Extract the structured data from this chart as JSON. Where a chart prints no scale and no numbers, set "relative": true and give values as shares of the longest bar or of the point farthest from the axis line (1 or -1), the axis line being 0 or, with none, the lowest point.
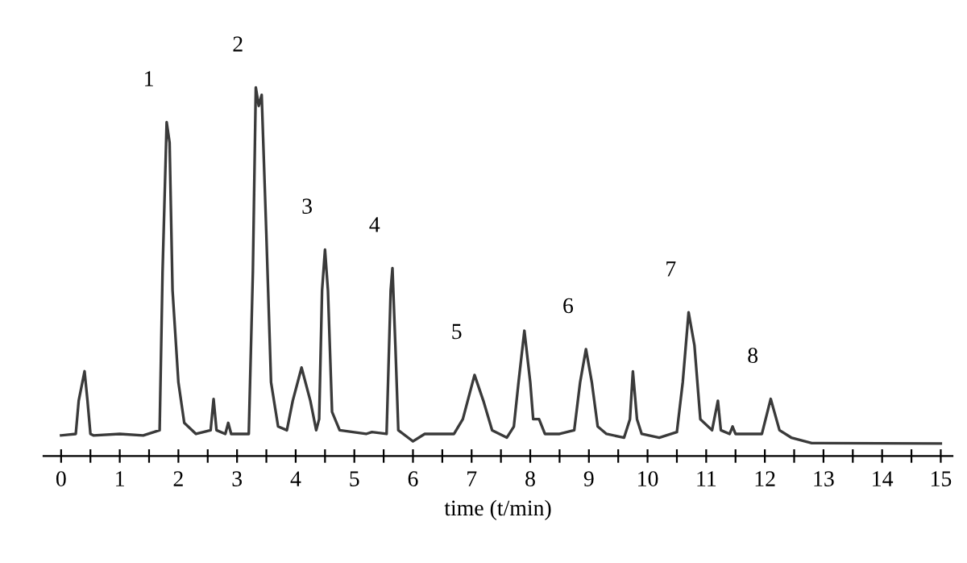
{
  "chart_data": {
    "type": "line",
    "relative": true,
    "xlabel": "time (t/min)",
    "tick_labels": "x",
    "grid": false,
    "legend": false,
    "marker": "none",
    "line_style": "solid",
    "xlim": [
      -0.3,
      15.2
    ],
    "xticks": [
      0,
      {
        "value": 0.5,
        "label": null
      },
      1,
      {
        "value": 1.5,
        "label": null
      },
      2,
      {
        "value": 2.5,
        "label": null
      },
      3,
      {
        "value": 3.5,
        "label": null
      },
      4,
      {
        "value": 4.5,
        "label": null
      },
      5,
      {
        "value": 5.5,
        "label": null
      },
      6,
      {
        "value": 6.5,
        "label": null
      },
      7,
      {
        "value": 7.5,
        "label": null
      },
      8,
      {
        "value": 8.5,
        "label": null
      },
      9,
      {
        "value": 9.5,
        "label": null
      },
      10,
      {
        "value": 10.5,
        "label": null
      },
      11,
      {
        "value": 11.5,
        "label": null
      },
      12,
      {
        "value": 12.5,
        "label": null
      },
      13,
      {
        "value": 13.5,
        "label": null
      },
      14,
      {
        "value": 14.5,
        "label": null
      },
      15
    ],
    "annotations": [
      {
        "text": "1",
        "x": 1.8,
        "y": 0.906
      },
      {
        "text": "2",
        "x": 3.32,
        "y": 1.0
      },
      {
        "text": "3",
        "x": 4.5,
        "y": 0.56
      },
      {
        "text": "4",
        "x": 5.65,
        "y": 0.51
      },
      {
        "text": "5",
        "x": 7.05,
        "y": 0.22
      },
      {
        "text": "6",
        "x": 8.95,
        "y": 0.29
      },
      {
        "text": "7",
        "x": 10.7,
        "y": 0.39
      },
      {
        "text": "8",
        "x": 12.1,
        "y": 0.155
      }
    ],
    "series": [
      {
        "color": "#3a3a3a",
        "x": [
          0,
          0.25,
          0.3,
          0.4,
          0.45,
          0.5,
          0.55,
          1.0,
          1.4,
          1.68,
          1.73,
          1.8,
          1.85,
          1.9,
          2.0,
          2.1,
          2.3,
          2.55,
          2.6,
          2.65,
          2.8,
          2.85,
          2.9,
          3.2,
          3.27,
          3.32,
          3.37,
          3.42,
          3.5,
          3.58,
          3.7,
          3.85,
          3.95,
          4.1,
          4.25,
          4.35,
          4.4,
          4.45,
          4.5,
          4.55,
          4.62,
          4.75,
          5.2,
          5.3,
          5.55,
          5.62,
          5.65,
          5.7,
          5.75,
          6.0,
          6.2,
          6.7,
          6.85,
          7.05,
          7.2,
          7.35,
          7.6,
          7.72,
          7.8,
          7.9,
          8.0,
          8.05,
          8.15,
          8.25,
          8.5,
          8.75,
          8.85,
          8.95,
          9.05,
          9.15,
          9.3,
          9.6,
          9.7,
          9.75,
          9.82,
          9.9,
          10.2,
          10.5,
          10.6,
          10.7,
          10.8,
          10.9,
          11.1,
          11.2,
          11.25,
          11.4,
          11.45,
          11.5,
          11.95,
          12.1,
          12.25,
          12.45,
          12.8,
          15
        ],
        "values": [
          0.056,
          0.06,
          0.15,
          0.23,
          0.15,
          0.06,
          0.056,
          0.06,
          0.056,
          0.07,
          0.5,
          0.906,
          0.85,
          0.45,
          0.2,
          0.09,
          0.06,
          0.07,
          0.155,
          0.07,
          0.06,
          0.09,
          0.06,
          0.06,
          0.5,
          1.0,
          0.95,
          0.98,
          0.6,
          0.2,
          0.08,
          0.07,
          0.15,
          0.24,
          0.15,
          0.07,
          0.1,
          0.45,
          0.56,
          0.45,
          0.12,
          0.07,
          0.06,
          0.065,
          0.06,
          0.45,
          0.51,
          0.3,
          0.07,
          0.04,
          0.06,
          0.06,
          0.1,
          0.22,
          0.15,
          0.07,
          0.05,
          0.08,
          0.2,
          0.34,
          0.2,
          0.1,
          0.1,
          0.06,
          0.06,
          0.07,
          0.2,
          0.29,
          0.2,
          0.08,
          0.06,
          0.05,
          0.1,
          0.23,
          0.1,
          0.06,
          0.05,
          0.065,
          0.2,
          0.39,
          0.3,
          0.1,
          0.07,
          0.15,
          0.07,
          0.06,
          0.08,
          0.06,
          0.06,
          0.155,
          0.07,
          0.05,
          0.035,
          0.034
        ]
      }
    ]
  }
}
